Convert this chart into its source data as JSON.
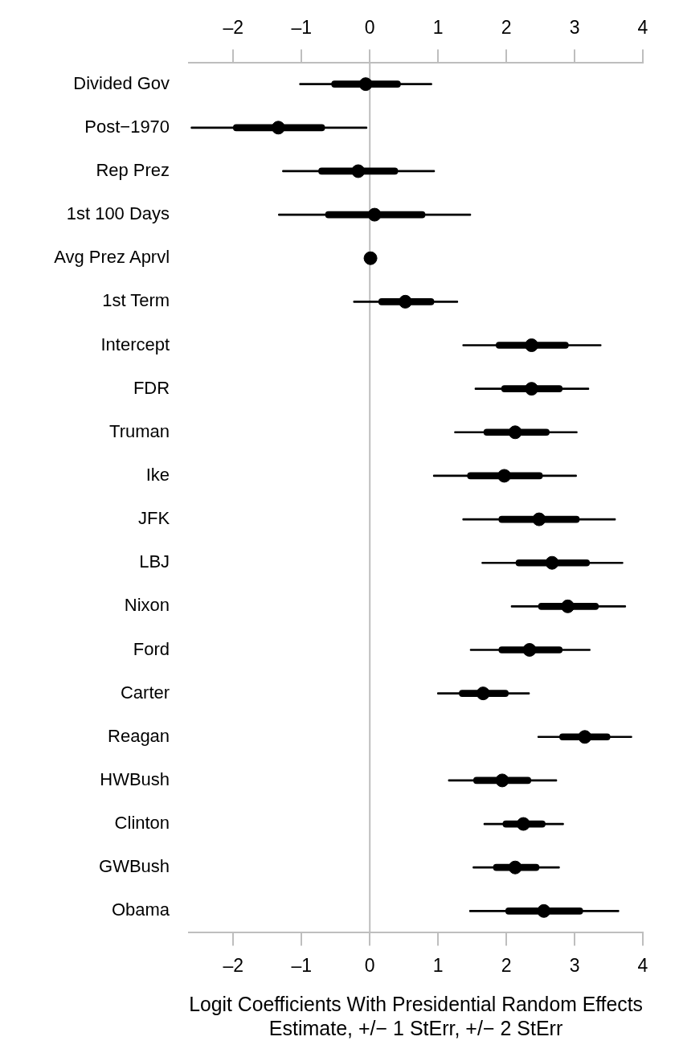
{
  "chart_data": {
    "type": "bar",
    "orientation": "horizontal",
    "xlabel": "Logit Coefficients With Presidential Random Effects",
    "annotations": [
      "Estimate, +/− 1 StErr, +/− 2 StErr"
    ],
    "categories": [
      "Divided Gov",
      "Post−1970",
      "Rep Prez",
      "1st 100 Days",
      "Avg Prez Aprvl",
      "1st Term",
      "Intercept",
      "FDR",
      "Truman",
      "Ike",
      "JFK",
      "LBJ",
      "Nixon",
      "Ford",
      "Carter",
      "Reagan",
      "HWBush",
      "Clinton",
      "GWBush",
      "Obama"
    ],
    "series": [
      {
        "color": "#000000",
        "base": [
          -1.03,
          -2.62,
          -1.28,
          -1.34,
          null,
          -0.24,
          1.36,
          1.54,
          1.24,
          0.93,
          1.36,
          1.64,
          2.07,
          1.47,
          0.99,
          2.46,
          1.15,
          1.67,
          1.51,
          1.46
        ],
        "values": [
          1.94,
          2.58,
          2.23,
          2.82,
          null,
          1.53,
          2.03,
          1.67,
          1.8,
          2.1,
          2.24,
          2.07,
          1.68,
          1.76,
          1.35,
          1.38,
          1.59,
          1.17,
          1.27,
          2.19
        ]
      },
      {
        "color": "#000000",
        "base": [
          -0.56,
          -2.0,
          -0.75,
          -0.65,
          null,
          0.13,
          1.85,
          1.93,
          1.67,
          1.43,
          1.89,
          2.14,
          2.47,
          1.89,
          1.31,
          2.78,
          1.52,
          1.95,
          1.81,
          1.99
        ],
        "values": [
          1.01,
          1.34,
          1.16,
          1.46,
          null,
          0.81,
          1.06,
          0.89,
          0.96,
          1.1,
          1.18,
          1.08,
          0.88,
          0.93,
          0.72,
          0.74,
          0.84,
          0.62,
          0.67,
          1.13
        ]
      },
      {
        "type": "scatter",
        "color": "#000000",
        "values": [
          -0.06,
          -1.34,
          -0.17,
          0.07,
          0.01,
          0.52,
          2.37,
          2.37,
          2.13,
          1.97,
          2.48,
          2.67,
          2.9,
          2.34,
          1.66,
          3.15,
          1.94,
          2.25,
          2.13,
          2.55
        ]
      }
    ],
    "marker": "circle",
    "grid": false,
    "legend": false,
    "xlim": [
      -2.65,
      4
    ],
    "xticks": [
      {
        "value": -2,
        "label": "–2"
      },
      {
        "value": -1,
        "label": "–1"
      },
      0,
      1,
      2,
      3,
      4
    ],
    "x2lim": [
      -2.65,
      4
    ],
    "x2ticks": [
      {
        "value": -2,
        "label": "–2"
      },
      {
        "value": -1,
        "label": "–1"
      },
      0,
      1,
      2,
      3,
      4
    ],
    "ref_lines": [
      {
        "axis": "x",
        "value": 0,
        "color": "#bebebe"
      }
    ]
  }
}
